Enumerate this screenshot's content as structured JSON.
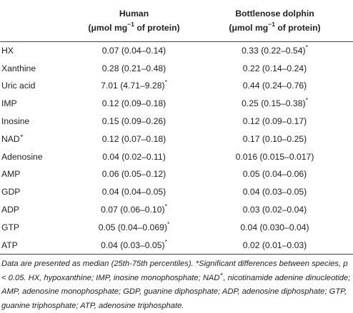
{
  "table": {
    "columns": [
      {
        "line1": "Human",
        "line2_pre": "(μmol mg",
        "line2_sup": "−1",
        "line2_post": " of protein)"
      },
      {
        "line1": "Bottlenose dolphin",
        "line2_pre": "(μmol mg",
        "line2_sup": "−1",
        "line2_post": " of protein)"
      }
    ],
    "rows": [
      {
        "name": "HX",
        "name_sup": "",
        "human": "0.07 (0.04–0.14)",
        "human_sup": "",
        "dolphin": "0.33 (0.22–0.54)",
        "dolphin_sup": "*"
      },
      {
        "name": "Xanthine",
        "name_sup": "",
        "human": "0.28 (0.21–0.48)",
        "human_sup": "",
        "dolphin": "0.22 (0.14–0.24)",
        "dolphin_sup": ""
      },
      {
        "name": "Uric acid",
        "name_sup": "",
        "human": "7.01 (4.71–9.28)",
        "human_sup": "*",
        "dolphin": "0.44 (0.24–0.76)",
        "dolphin_sup": ""
      },
      {
        "name": "IMP",
        "name_sup": "",
        "human": "0.12 (0.09–0.18)",
        "human_sup": "",
        "dolphin": "0.25 (0.15–0.38)",
        "dolphin_sup": "*"
      },
      {
        "name": "Inosine",
        "name_sup": "",
        "human": "0.15 (0.09–0.26)",
        "human_sup": "",
        "dolphin": "0.12 (0.09–0.17)",
        "dolphin_sup": ""
      },
      {
        "name": "NAD",
        "name_sup": "+",
        "human": "0.12 (0.07–0.18)",
        "human_sup": "",
        "dolphin": "0.17 (0.10–0.25)",
        "dolphin_sup": ""
      },
      {
        "name": "Adenosine",
        "name_sup": "",
        "human": "0.04 (0.02–0.11)",
        "human_sup": "",
        "dolphin": "0.016 (0.015–0.017)",
        "dolphin_sup": ""
      },
      {
        "name": "AMP",
        "name_sup": "",
        "human": "0.06 (0.05–0.12)",
        "human_sup": "",
        "dolphin": "0.05 (0.04–0.06)",
        "dolphin_sup": ""
      },
      {
        "name": "GDP",
        "name_sup": "",
        "human": "0.04 (0.04–0.05)",
        "human_sup": "",
        "dolphin": "0.04 (0.03–0.05)",
        "dolphin_sup": ""
      },
      {
        "name": "ADP",
        "name_sup": "",
        "human": "0.07 (0.06–0.10)",
        "human_sup": "*",
        "dolphin": "0.03 (0.02–0.04)",
        "dolphin_sup": ""
      },
      {
        "name": "GTP",
        "name_sup": "",
        "human": "0.05 (0.04–0.069)",
        "human_sup": "*",
        "dolphin": "0.04 (0.030–0.04)",
        "dolphin_sup": ""
      },
      {
        "name": "ATP",
        "name_sup": "",
        "human": "0.04 (0.03–0.05)",
        "human_sup": "*",
        "dolphin": "0.02 (0.01–0.03)",
        "dolphin_sup": ""
      }
    ]
  },
  "footnote": {
    "part1": "Data are presented as median (25th-75th percentiles). *Significant differences between species, p < 0.05. HX, hypoxanthine; IMP, inosine monophosphate; NAD",
    "sup": "+",
    "part2": ", nicotinamide adenine dinucleotide; AMP, adenosine monophosphate; GDP, guanine diphosphate; ADP, adenosine diphosphate; GTP, guanine triphosphate; ATP, adenosine triphosphate."
  }
}
